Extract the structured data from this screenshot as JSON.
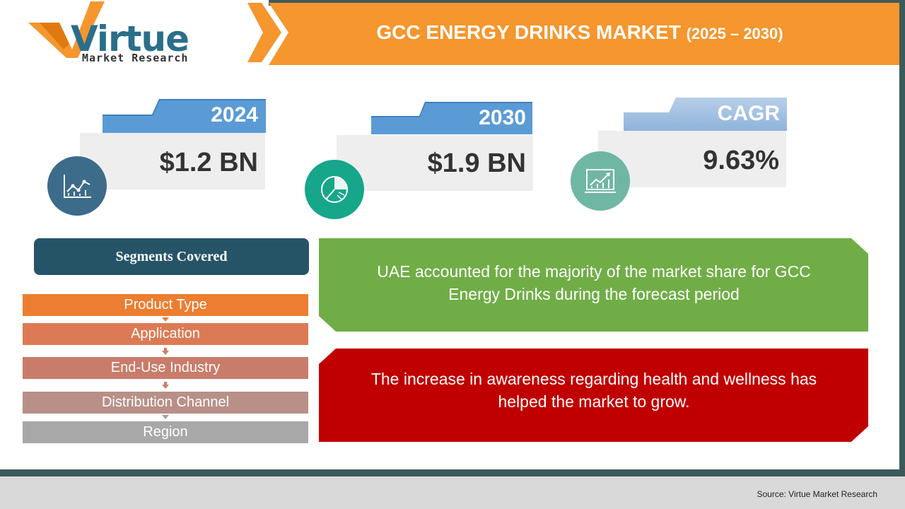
{
  "logo": {
    "word": "Virtue",
    "subtitle": "Market Research"
  },
  "header": {
    "title": "GCC ENERGY DRINKS MARKET",
    "years": "(2025 – 2030)"
  },
  "stats": [
    {
      "label": "2024",
      "value": "$1.2 BN",
      "icon": "line-chart-icon",
      "color": "#3d6b8a"
    },
    {
      "label": "2030",
      "value": "$1.9 BN",
      "icon": "pie-chart-icon",
      "color": "#16a68a"
    },
    {
      "label": "CAGR",
      "value": "9.63%",
      "icon": "growth-chart-icon",
      "color": "#6fb7a4"
    }
  ],
  "segments": {
    "header": "Segments Covered",
    "items": [
      "Product Type",
      "Application",
      "End-Use Industry",
      "Distribution Channel",
      "Region"
    ]
  },
  "callouts": {
    "green": "UAE accounted for the majority of the market share for GCC Energy Drinks during the forecast period",
    "red": "The increase in awareness regarding health and wellness has helped the market to grow."
  },
  "colors": {
    "orange": "#f5962e",
    "dark_teal": "#3d5a5a",
    "green": "#70ad47",
    "red": "#c00000",
    "blue_tab": "#5b9bd5"
  },
  "footer": {
    "source": "Source: Virtue Market Research"
  }
}
